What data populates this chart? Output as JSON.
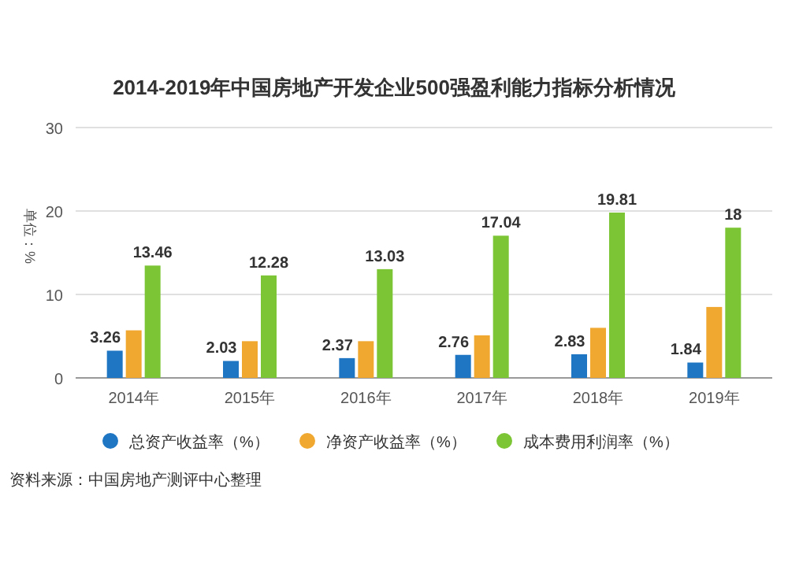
{
  "chart_data": {
    "type": "bar",
    "title": "2014-2019年中国房地产开发企业500强盈利能力指标分析情况",
    "ylabel": "单位：%",
    "categories": [
      "2014年",
      "2015年",
      "2016年",
      "2017年",
      "2018年",
      "2019年"
    ],
    "series": [
      {
        "name": "总资产收益率（%）",
        "color": "#1f77c4",
        "values": [
          3.26,
          2.03,
          2.37,
          2.76,
          2.83,
          1.84
        ],
        "value_labels": [
          "3.26",
          "2.03",
          "2.37",
          "2.76",
          "2.83",
          "1.84"
        ]
      },
      {
        "name": "净资产收益率（%）",
        "color": "#f0a830",
        "values": [
          5.7,
          4.4,
          4.4,
          5.1,
          6.0,
          8.5
        ]
      },
      {
        "name": "成本费用利润率（%）",
        "color": "#7cc534",
        "values": [
          13.46,
          12.28,
          13.03,
          17.04,
          19.81,
          18
        ],
        "value_labels": [
          "13.46",
          "12.28",
          "13.03",
          "17.04",
          "19.81",
          "18"
        ]
      }
    ],
    "ylim": [
      0,
      30
    ],
    "yticks": [
      0,
      10,
      20,
      30
    ],
    "grid": "y",
    "legend": "bottom",
    "annotations": [
      "资料来源：中国房地产测评中心整理"
    ]
  }
}
